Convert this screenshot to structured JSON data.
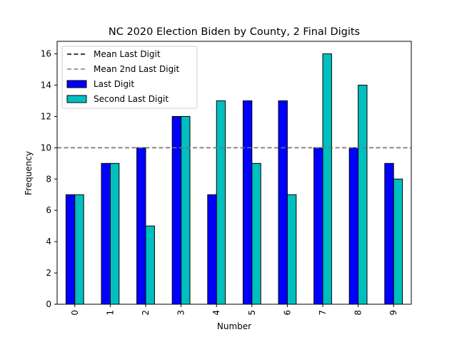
{
  "chart_data": {
    "type": "bar",
    "title": "NC 2020 Election Biden by County, 2 Final Digits",
    "xlabel": "Number",
    "ylabel": "Frequency",
    "categories": [
      "0",
      "1",
      "2",
      "3",
      "4",
      "5",
      "6",
      "7",
      "8",
      "9"
    ],
    "ylim": [
      0,
      16.8
    ],
    "yticks": [
      0,
      2,
      4,
      6,
      8,
      10,
      12,
      14,
      16
    ],
    "series": [
      {
        "name": "Last Digit",
        "color": "#0000ff",
        "values": [
          7,
          9,
          10,
          12,
          7,
          13,
          13,
          10,
          10,
          9
        ]
      },
      {
        "name": "Second Last Digit",
        "color": "#00bfbf",
        "values": [
          7,
          9,
          5,
          12,
          13,
          9,
          7,
          16,
          14,
          8
        ]
      }
    ],
    "reference_lines": [
      {
        "name": "Mean Last Digit",
        "value": 10,
        "color": "#000000",
        "style": "dashed"
      },
      {
        "name": "Mean 2nd Last Digit",
        "value": 10,
        "color": "#808080",
        "style": "dashed"
      }
    ],
    "legend_position": "top-left",
    "grid": false
  }
}
